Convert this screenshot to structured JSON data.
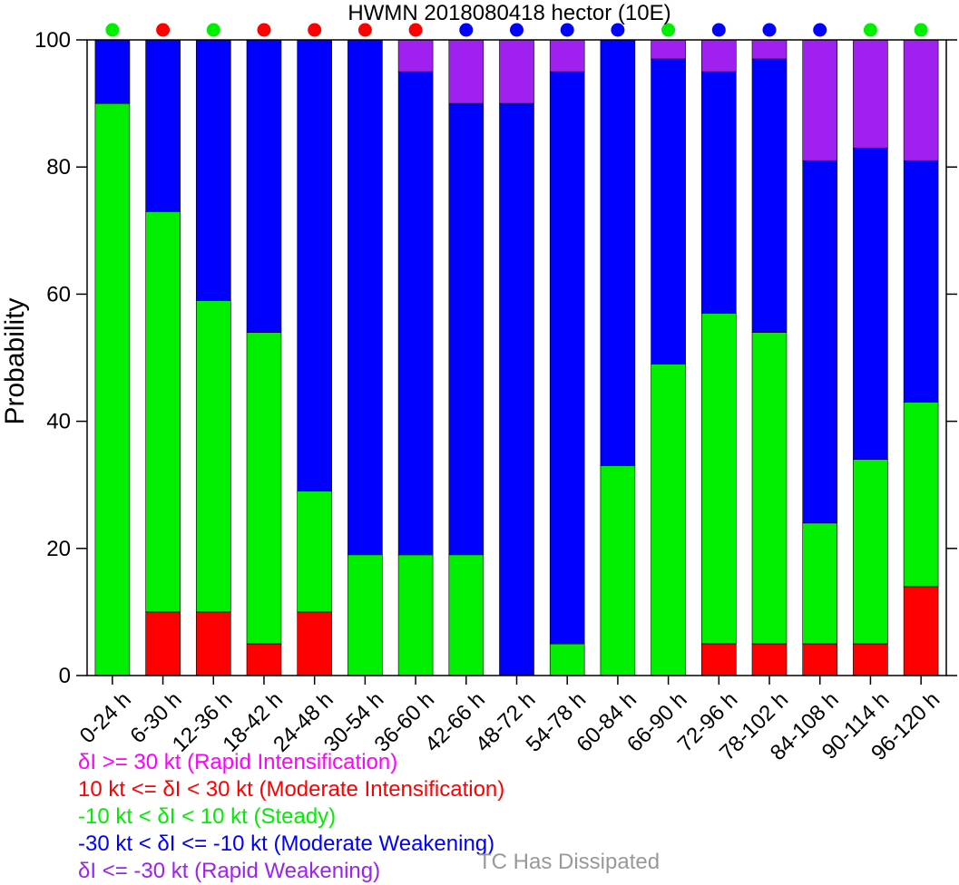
{
  "chart_data": {
    "type": "bar",
    "stacked": true,
    "title": "HWMN 2018080418 hector (10E)",
    "ylabel": "Probability",
    "xlabel": "",
    "ylim": [
      0,
      100
    ],
    "yticks": [
      0,
      20,
      40,
      60,
      80,
      100
    ],
    "categories": [
      "0-24 h",
      "6-30 h",
      "12-36 h",
      "18-42 h",
      "24-48 h",
      "30-54 h",
      "36-60 h",
      "42-66 h",
      "48-72 h",
      "54-78 h",
      "60-84 h",
      "66-90 h",
      "72-96 h",
      "78-102 h",
      "84-108 h",
      "90-114 h",
      "96-120 h"
    ],
    "series": [
      {
        "name": "δI >= 30 kt (Rapid Intensification)",
        "color": "#ff00ff",
        "values": [
          0,
          0,
          0,
          0,
          0,
          0,
          0,
          0,
          0,
          0,
          0,
          0,
          0,
          0,
          0,
          0,
          0
        ]
      },
      {
        "name": "10 kt <= δI < 30 kt (Moderate Intensification)",
        "color": "#ff0000",
        "values": [
          0,
          10,
          10,
          5,
          10,
          0,
          0,
          0,
          0,
          0,
          0,
          0,
          5,
          5,
          5,
          5,
          14
        ]
      },
      {
        "name": "-10 kt < δI < 10 kt (Steady)",
        "color": "#00ee00",
        "values": [
          90,
          63,
          49,
          49,
          19,
          19,
          19,
          19,
          0,
          5,
          33,
          49,
          52,
          49,
          19,
          29,
          29
        ]
      },
      {
        "name": "-30 kt < δI <= -10 kt (Moderate Weakening)",
        "color": "#0000ff",
        "values": [
          10,
          27,
          41,
          46,
          71,
          81,
          76,
          71,
          90,
          90,
          67,
          48,
          38,
          43,
          57,
          49,
          38
        ]
      },
      {
        "name": "δI <= -30 kt (Rapid Weakening)",
        "color": "#a020f0",
        "values": [
          0,
          0,
          0,
          0,
          0,
          0,
          5,
          10,
          10,
          5,
          0,
          3,
          5,
          3,
          19,
          17,
          19
        ]
      }
    ],
    "category_markers": [
      "green",
      "red",
      "green",
      "red",
      "red",
      "red",
      "red",
      "blue",
      "blue",
      "blue",
      "blue",
      "green",
      "blue",
      "blue",
      "blue",
      "green",
      "green"
    ],
    "marker_colors": {
      "green": "#00ee00",
      "red": "#ff0000",
      "blue": "#0000ff"
    },
    "legend_placement": "bottom-left",
    "legend_extra": {
      "label": "TC Has Dissipated",
      "color": "#999999"
    },
    "grid": false
  }
}
